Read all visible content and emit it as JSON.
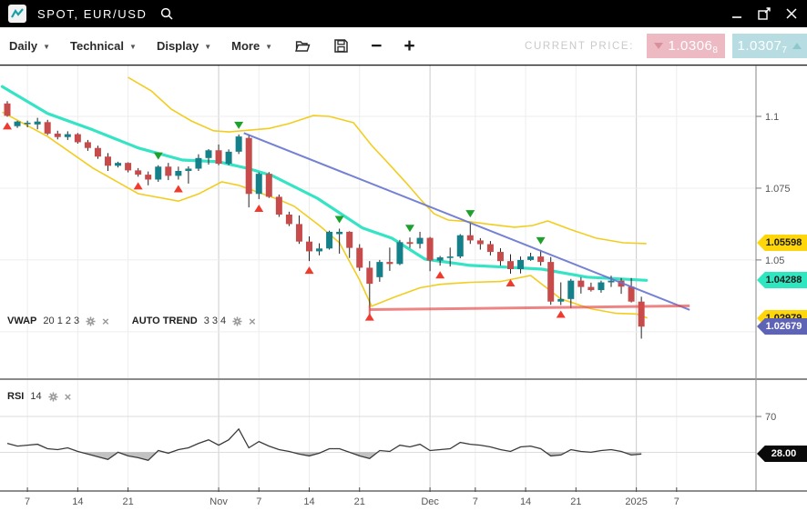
{
  "titlebar": {
    "title": "SPOT, EUR/USD",
    "icons": [
      "chart-line-icon",
      "search-icon",
      "minimize-icon",
      "popout-icon",
      "close-icon"
    ]
  },
  "toolbar": {
    "menus": [
      {
        "label": "Daily"
      },
      {
        "label": "Technical"
      },
      {
        "label": "Display"
      },
      {
        "label": "More"
      }
    ],
    "icons": [
      "open-folder-icon",
      "save-icon",
      "zoom-out-icon",
      "zoom-in-icon"
    ],
    "zoom_out_glyph": "−",
    "zoom_in_glyph": "+",
    "current_price_label": "CURRENT PRICE:",
    "bid": {
      "value": "1.0306",
      "pip": "8",
      "direction": "down",
      "color": "#edbac3"
    },
    "ask": {
      "value": "1.0307",
      "pip": "7",
      "direction": "up",
      "color": "#b7dde2"
    }
  },
  "indicators": {
    "vwap": {
      "name": "VWAP",
      "params": "20 1 2 3"
    },
    "auto_trend": {
      "name": "AUTO TREND",
      "params": "3 3 4"
    },
    "rsi": {
      "name": "RSI",
      "params": "14"
    }
  },
  "chart_data": {
    "type": "candlestick",
    "symbol": "SPOT, EUR/USD",
    "timeframe": "Daily",
    "ylim": [
      1.008,
      1.118
    ],
    "grid": true,
    "y_axis": {
      "ticks": [
        {
          "t": "1.1",
          "p": 1.1
        },
        {
          "t": "1.075",
          "p": 1.075
        },
        {
          "t": "1.05",
          "p": 1.05
        }
      ],
      "grid_prices": [
        1.1,
        1.075,
        1.05,
        1.025
      ]
    },
    "x_axis": {
      "labels": [
        {
          "t": "7",
          "i": 2
        },
        {
          "t": "14",
          "i": 7
        },
        {
          "t": "21",
          "i": 12
        },
        {
          "t": "Nov",
          "i": 21,
          "m": true
        },
        {
          "t": "7",
          "i": 25
        },
        {
          "t": "14",
          "i": 30
        },
        {
          "t": "21",
          "i": 35
        },
        {
          "t": "Dec",
          "i": 42,
          "m": true
        },
        {
          "t": "7",
          "i": 46.5
        },
        {
          "t": "14",
          "i": 51.5
        },
        {
          "t": "21",
          "i": 56.5
        },
        {
          "t": "2025",
          "i": 62.5,
          "m": true
        },
        {
          "t": "7",
          "i": 66.5
        }
      ]
    },
    "candles_format": [
      "open",
      "high",
      "low",
      "close"
    ],
    "candles": [
      [
        1.1045,
        1.1053,
        1.0999,
        1.1002
      ],
      [
        1.0966,
        1.0985,
        1.096,
        1.0982
      ],
      [
        1.0976,
        1.0985,
        1.0962,
        1.0978
      ],
      [
        1.0972,
        1.0995,
        1.0955,
        1.0982
      ],
      [
        1.098,
        1.0988,
        1.0935,
        1.094
      ],
      [
        1.094,
        1.095,
        1.092,
        1.0928
      ],
      [
        1.0928,
        1.0948,
        1.0918,
        1.0938
      ],
      [
        1.0938,
        1.0942,
        1.0905,
        1.091
      ],
      [
        1.091,
        1.0918,
        1.088,
        1.089
      ],
      [
        1.089,
        1.0898,
        1.0852,
        1.086
      ],
      [
        1.086,
        1.0872,
        1.081,
        1.0828
      ],
      [
        1.0828,
        1.0842,
        1.0822,
        1.0838
      ],
      [
        1.0838,
        1.084,
        1.0805,
        1.0812
      ],
      [
        1.0812,
        1.082,
        1.079,
        1.0797
      ],
      [
        1.0797,
        1.0808,
        1.076,
        1.078
      ],
      [
        1.078,
        1.083,
        1.0772,
        1.0825
      ],
      [
        1.0825,
        1.0838,
        1.0778,
        1.0793
      ],
      [
        1.0793,
        1.0825,
        1.078,
        1.081
      ],
      [
        1.081,
        1.0826,
        1.0766,
        1.0818
      ],
      [
        1.0818,
        1.0868,
        1.081,
        1.0855
      ],
      [
        1.0855,
        1.0886,
        1.0832,
        1.0882
      ],
      [
        1.0882,
        1.0902,
        1.083,
        1.0835
      ],
      [
        1.0835,
        1.0885,
        1.083,
        1.0877
      ],
      [
        1.0877,
        1.0937,
        1.0869,
        1.093
      ],
      [
        1.0925,
        1.0935,
        1.0683,
        1.073
      ],
      [
        1.073,
        1.0805,
        1.0712,
        1.08
      ],
      [
        1.08,
        1.0806,
        1.0716,
        1.072
      ],
      [
        1.072,
        1.0728,
        1.065,
        1.0658
      ],
      [
        1.0658,
        1.0668,
        1.0618,
        1.0625
      ],
      [
        1.0625,
        1.0655,
        1.0556,
        1.0564
      ],
      [
        1.0564,
        1.0582,
        1.0496,
        1.053
      ],
      [
        1.053,
        1.0558,
        1.0516,
        1.054
      ],
      [
        1.054,
        1.0602,
        1.0536,
        1.0598
      ],
      [
        1.059,
        1.0609,
        1.0522,
        1.0598
      ],
      [
        1.0598,
        1.06,
        1.0507,
        1.0542
      ],
      [
        1.0542,
        1.0555,
        1.0462,
        1.0473
      ],
      [
        1.0473,
        1.0496,
        1.0333,
        1.0417
      ],
      [
        1.044,
        1.05,
        1.0424,
        1.0493
      ],
      [
        1.0493,
        1.0543,
        1.0462,
        1.0486
      ],
      [
        1.0486,
        1.057,
        1.0482,
        1.0562
      ],
      [
        1.0562,
        1.0578,
        1.0542,
        1.0556
      ],
      [
        1.0556,
        1.0598,
        1.054,
        1.0577
      ],
      [
        1.0577,
        1.058,
        1.0461,
        1.0498
      ],
      [
        1.0498,
        1.0514,
        1.048,
        1.0509
      ],
      [
        1.0509,
        1.0543,
        1.0477,
        1.0512
      ],
      [
        1.0512,
        1.059,
        1.0506,
        1.0586
      ],
      [
        1.0586,
        1.0629,
        1.0556,
        1.0568
      ],
      [
        1.0568,
        1.0576,
        1.0536,
        1.0555
      ],
      [
        1.0555,
        1.0566,
        1.0516,
        1.0528
      ],
      [
        1.0528,
        1.0541,
        1.048,
        1.0496
      ],
      [
        1.0496,
        1.052,
        1.0452,
        1.0468
      ],
      [
        1.0468,
        1.0512,
        1.0453,
        1.05
      ],
      [
        1.05,
        1.0525,
        1.0497,
        1.0512
      ],
      [
        1.0512,
        1.0535,
        1.048,
        1.0493
      ],
      [
        1.0493,
        1.051,
        1.0344,
        1.0355
      ],
      [
        1.0355,
        1.0422,
        1.0343,
        1.0364
      ],
      [
        1.0364,
        1.0434,
        1.0332,
        1.0428
      ],
      [
        1.0428,
        1.044,
        1.0383,
        1.0406
      ],
      [
        1.0406,
        1.0421,
        1.039,
        1.0395
      ],
      [
        1.0395,
        1.0428,
        1.0386,
        1.0422
      ],
      [
        1.0422,
        1.0445,
        1.0406,
        1.0428
      ],
      [
        1.0428,
        1.0437,
        1.0382,
        1.0407
      ],
      [
        1.0407,
        1.0437,
        1.0352,
        1.0355
      ],
      [
        1.0355,
        1.0372,
        1.0226,
        1.02679
      ]
    ],
    "overlays": {
      "vwap_line": [
        [
          -0.5,
          1.1104
        ],
        [
          4,
          1.101
        ],
        [
          8.5,
          1.0953
        ],
        [
          13,
          1.089
        ],
        [
          17.4,
          1.0848
        ],
        [
          21,
          1.0842
        ],
        [
          24,
          1.0818
        ],
        [
          26.3,
          1.0794
        ],
        [
          30.8,
          1.0715
        ],
        [
          35.3,
          1.0611
        ],
        [
          38.2,
          1.0576
        ],
        [
          41.5,
          1.0503
        ],
        [
          46,
          1.0481
        ],
        [
          49.6,
          1.0475
        ],
        [
          53.1,
          1.0468
        ],
        [
          57.6,
          1.044
        ],
        [
          63.5,
          1.0429
        ]
      ],
      "bb_upper": [
        [
          12,
          1.1136
        ],
        [
          14.3,
          1.1089
        ],
        [
          16.3,
          1.1025
        ],
        [
          18.3,
          1.0984
        ],
        [
          20.5,
          1.095
        ],
        [
          22,
          1.0946
        ],
        [
          24,
          1.0952
        ],
        [
          26,
          1.0958
        ],
        [
          28,
          1.0975
        ],
        [
          30.4,
          1.1003
        ],
        [
          32,
          1.1
        ],
        [
          34.4,
          1.0978
        ],
        [
          36.2,
          1.0899
        ],
        [
          37.9,
          1.0835
        ],
        [
          39.7,
          1.0766
        ],
        [
          41.1,
          1.0709
        ],
        [
          42.4,
          1.0661
        ],
        [
          43.8,
          1.0639
        ],
        [
          46,
          1.0633
        ],
        [
          48.2,
          1.0623
        ],
        [
          50.4,
          1.0614
        ],
        [
          52.2,
          1.062
        ],
        [
          53.7,
          1.0636
        ],
        [
          55.8,
          1.0608
        ],
        [
          58.5,
          1.0576
        ],
        [
          61.2,
          1.056
        ],
        [
          63.5,
          1.0557
        ]
      ],
      "bb_lower": [
        [
          -0.5,
          1.1015
        ],
        [
          4,
          1.093
        ],
        [
          8.5,
          1.082
        ],
        [
          13,
          1.0731
        ],
        [
          17,
          1.0705
        ],
        [
          19,
          1.073
        ],
        [
          21.3,
          1.0772
        ],
        [
          23,
          1.076
        ],
        [
          25,
          1.0735
        ],
        [
          27,
          1.071
        ],
        [
          28.5,
          1.0687
        ],
        [
          31,
          1.062
        ],
        [
          33,
          1.056
        ],
        [
          35,
          1.043
        ],
        [
          36.2,
          1.0339
        ],
        [
          38.5,
          1.0371
        ],
        [
          41,
          1.0403
        ],
        [
          43,
          1.0415
        ],
        [
          46,
          1.0422
        ],
        [
          49,
          1.0425
        ],
        [
          52,
          1.0446
        ],
        [
          55,
          1.0364
        ],
        [
          58,
          1.033
        ],
        [
          60.5,
          1.0314
        ],
        [
          62.5,
          1.0312
        ],
        [
          63.6,
          1.0298
        ]
      ],
      "trend_blue": [
        [
          23.5,
          1.0942
        ],
        [
          67.8,
          1.0326
        ]
      ],
      "trend_red": [
        [
          36,
          1.0327
        ],
        [
          67.8,
          1.034
        ]
      ]
    },
    "signals": {
      "buy_indices": [
        0,
        13,
        17,
        25,
        30,
        36,
        43,
        50,
        55
      ],
      "sell_indices": [
        15,
        23,
        33,
        40,
        46,
        53
      ]
    },
    "rsi": {
      "values": [
        40,
        37,
        38,
        39,
        34,
        33,
        35,
        31,
        28,
        25,
        22,
        30,
        26,
        24,
        21,
        32,
        29,
        33,
        35,
        40,
        44,
        38,
        44,
        56,
        35,
        42,
        37,
        33,
        31,
        28,
        26,
        29,
        34,
        34,
        30,
        26,
        23,
        32,
        31,
        38,
        36,
        39,
        32,
        33,
        34,
        41,
        39,
        38,
        36,
        33,
        31,
        36,
        37,
        34,
        26,
        27,
        33,
        31,
        30,
        32,
        33,
        31,
        27,
        28
      ],
      "levels": [
        70,
        30
      ],
      "ticks": [
        {
          "t": "70",
          "v": 70
        }
      ],
      "last_value": "28.00"
    },
    "badges": [
      {
        "text": "1.05598",
        "v": 1.05598,
        "bg": "#ffd60a",
        "fg": "#1a1a1a",
        "panel": "price"
      },
      {
        "text": "1.04288",
        "v": 1.04288,
        "bg": "#2ee6c0",
        "fg": "#1a1a1a",
        "panel": "price"
      },
      {
        "text": "1.02979",
        "v": 1.02979,
        "bg": "#ffd60a",
        "fg": "#1a1a1a",
        "panel": "price"
      },
      {
        "text": "1.02679",
        "v": 1.02679,
        "bg": "#5e63b6",
        "fg": "#ffffff",
        "panel": "price"
      },
      {
        "text": "28.00",
        "v": 28,
        "bg": "#0a0a0a",
        "fg": "#ffffff",
        "panel": "rsi"
      }
    ],
    "colors": {
      "candle_up": "#14808a",
      "candle_down": "#c84b4b",
      "wick": "#222222",
      "vwap": "#35e3c5",
      "bollinger": "#f2cd1f",
      "trend_blue": "#6674d0",
      "trend_red": "#e54545",
      "signal_buy": "#ee3b2d",
      "signal_sell": "#1da12c",
      "rsi_line": "#3a3a3a",
      "grid_week": "#ededed",
      "grid_month": "#cbcbcb",
      "axis_text": "#555555"
    }
  }
}
